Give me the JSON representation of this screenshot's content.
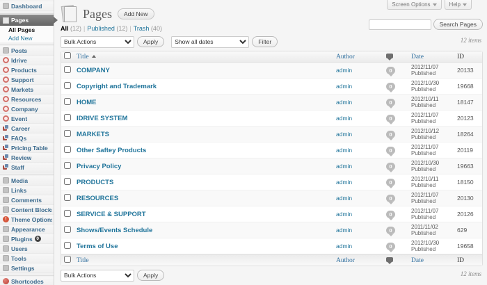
{
  "colors": {
    "link": "#21759b",
    "header_link": "#2f6f9f",
    "active_menu_bg": "#6e6e6e",
    "comment_bubble": "#bbbbbb",
    "badge": "#404040"
  },
  "screen_meta": {
    "screen_options": "Screen Options",
    "help": "Help"
  },
  "header": {
    "title": "Pages",
    "add_new": "Add New"
  },
  "search": {
    "button": "Search Pages",
    "value": ""
  },
  "views": [
    {
      "label": "All",
      "count": "(12)",
      "current": true
    },
    {
      "label": "Published",
      "count": "(12)",
      "current": false
    },
    {
      "label": "Trash",
      "count": "(40)",
      "current": false
    }
  ],
  "tablenav": {
    "bulk_actions": "Bulk Actions",
    "apply": "Apply",
    "dates_filter": "Show all dates",
    "filter": "Filter",
    "items_count": "12 items"
  },
  "table": {
    "columns": {
      "title": "Title",
      "author": "Author",
      "date": "Date",
      "id": "ID",
      "comments_icon": "comment-bubble-icon"
    },
    "rows": [
      {
        "title": "COMPANY",
        "author": "admin",
        "comments": "0",
        "date": "2012/11/07",
        "status": "Published",
        "id": "20133"
      },
      {
        "title": "Copyright and Trademark",
        "author": "admin",
        "comments": "0",
        "date": "2012/10/30",
        "status": "Published",
        "id": "19668"
      },
      {
        "title": "HOME",
        "author": "admin",
        "comments": "0",
        "date": "2012/10/11",
        "status": "Published",
        "id": "18147"
      },
      {
        "title": "IDRIVE SYSTEM",
        "author": "admin",
        "comments": "0",
        "date": "2012/11/07",
        "status": "Published",
        "id": "20123"
      },
      {
        "title": "MARKETS",
        "author": "admin",
        "comments": "0",
        "date": "2012/10/12",
        "status": "Published",
        "id": "18264"
      },
      {
        "title": "Other Saftey Products",
        "author": "admin",
        "comments": "0",
        "date": "2012/11/07",
        "status": "Published",
        "id": "20119"
      },
      {
        "title": "Privacy Policy",
        "author": "admin",
        "comments": "0",
        "date": "2012/10/30",
        "status": "Published",
        "id": "19663"
      },
      {
        "title": "PRODUCTS",
        "author": "admin",
        "comments": "0",
        "date": "2012/10/11",
        "status": "Published",
        "id": "18150"
      },
      {
        "title": "RESOURCES",
        "author": "admin",
        "comments": "0",
        "date": "2012/11/07",
        "status": "Published",
        "id": "20130"
      },
      {
        "title": "SERVICE & SUPPORT",
        "author": "admin",
        "comments": "0",
        "date": "2012/11/07",
        "status": "Published",
        "id": "20126"
      },
      {
        "title": "Shows/Events Schedule",
        "author": "admin",
        "comments": "0",
        "date": "2011/11/02",
        "status": "Published",
        "id": "629"
      },
      {
        "title": "Terms of Use",
        "author": "admin",
        "comments": "0",
        "date": "2012/10/30",
        "status": "Published",
        "id": "19658"
      }
    ]
  },
  "sidebar": {
    "items": [
      {
        "type": "item",
        "label": "Dashboard",
        "icon": "dashboard"
      },
      {
        "type": "sep"
      },
      {
        "type": "active",
        "label": "Pages",
        "icon": "pages"
      },
      {
        "type": "sub",
        "label": "All Pages",
        "current": true
      },
      {
        "type": "sub",
        "label": "Add New",
        "current": false
      },
      {
        "type": "sep"
      },
      {
        "type": "item",
        "label": "Posts",
        "icon": "posts"
      },
      {
        "type": "item",
        "label": "Idrive",
        "icon": "ring"
      },
      {
        "type": "item",
        "label": "Products",
        "icon": "ring"
      },
      {
        "type": "item",
        "label": "Support",
        "icon": "ring"
      },
      {
        "type": "item",
        "label": "Markets",
        "icon": "ring"
      },
      {
        "type": "item",
        "label": "Resources",
        "icon": "ring"
      },
      {
        "type": "item",
        "label": "Company",
        "icon": "ring"
      },
      {
        "type": "item",
        "label": "Event",
        "icon": "ring"
      },
      {
        "type": "item",
        "label": "Career",
        "icon": "stack"
      },
      {
        "type": "item",
        "label": "FAQs",
        "icon": "stack"
      },
      {
        "type": "item",
        "label": "Pricing Table",
        "icon": "stack"
      },
      {
        "type": "item",
        "label": "Review",
        "icon": "stack"
      },
      {
        "type": "item",
        "label": "Staff",
        "icon": "stack"
      },
      {
        "type": "sep"
      },
      {
        "type": "item",
        "label": "Media",
        "icon": "media"
      },
      {
        "type": "item",
        "label": "Links",
        "icon": "links"
      },
      {
        "type": "item",
        "label": "Comments",
        "icon": "comments"
      },
      {
        "type": "item",
        "label": "Content Blocks",
        "icon": "content-blocks"
      },
      {
        "type": "item",
        "label": "Theme Options",
        "icon": "warn"
      },
      {
        "type": "item",
        "label": "Appearance",
        "icon": "appearance"
      },
      {
        "type": "item",
        "label": "Plugins",
        "icon": "plugins",
        "badge": "0"
      },
      {
        "type": "item",
        "label": "Users",
        "icon": "users"
      },
      {
        "type": "item",
        "label": "Tools",
        "icon": "tools"
      },
      {
        "type": "item",
        "label": "Settings",
        "icon": "settings"
      },
      {
        "type": "sep"
      },
      {
        "type": "item",
        "label": "Shortcodes",
        "icon": "redball"
      }
    ]
  }
}
